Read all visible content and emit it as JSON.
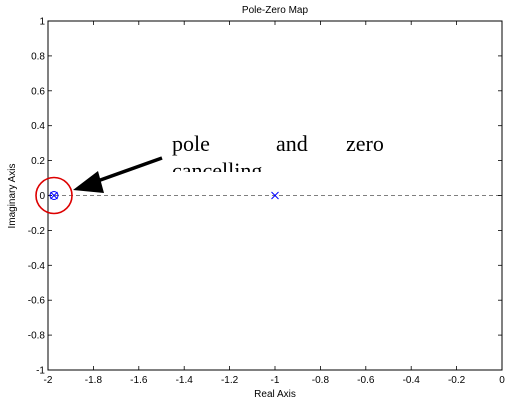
{
  "chart_data": {
    "type": "scatter",
    "title": "Pole-Zero Map",
    "xlabel": "Real Axis",
    "ylabel": "Imaginary Axis",
    "xlim": [
      -2,
      0
    ],
    "ylim": [
      -1,
      1
    ],
    "x_ticks": [
      "-2",
      "-1.8",
      "-1.6",
      "-1.4",
      "-1.2",
      "-1",
      "-0.8",
      "-0.6",
      "-0.4",
      "-0.2",
      "0"
    ],
    "y_ticks": [
      "1",
      "0.8",
      "0.6",
      "0.4",
      "0.2",
      "0",
      "-0.2",
      "-0.4",
      "-0.6",
      "-0.8",
      "-1"
    ],
    "grid": false,
    "series": [
      {
        "marker": "x",
        "points": [
          [
            -2,
            0
          ],
          [
            -1,
            0
          ]
        ]
      },
      {
        "marker": "o",
        "points": [
          [
            -2,
            0
          ]
        ]
      }
    ],
    "annotation": {
      "line1": [
        "pole",
        "and",
        "zero"
      ],
      "line2": "cancelling"
    },
    "colors": {
      "marker": "#0000ff",
      "highlight": "#dd0000",
      "axis": "#000000"
    }
  }
}
